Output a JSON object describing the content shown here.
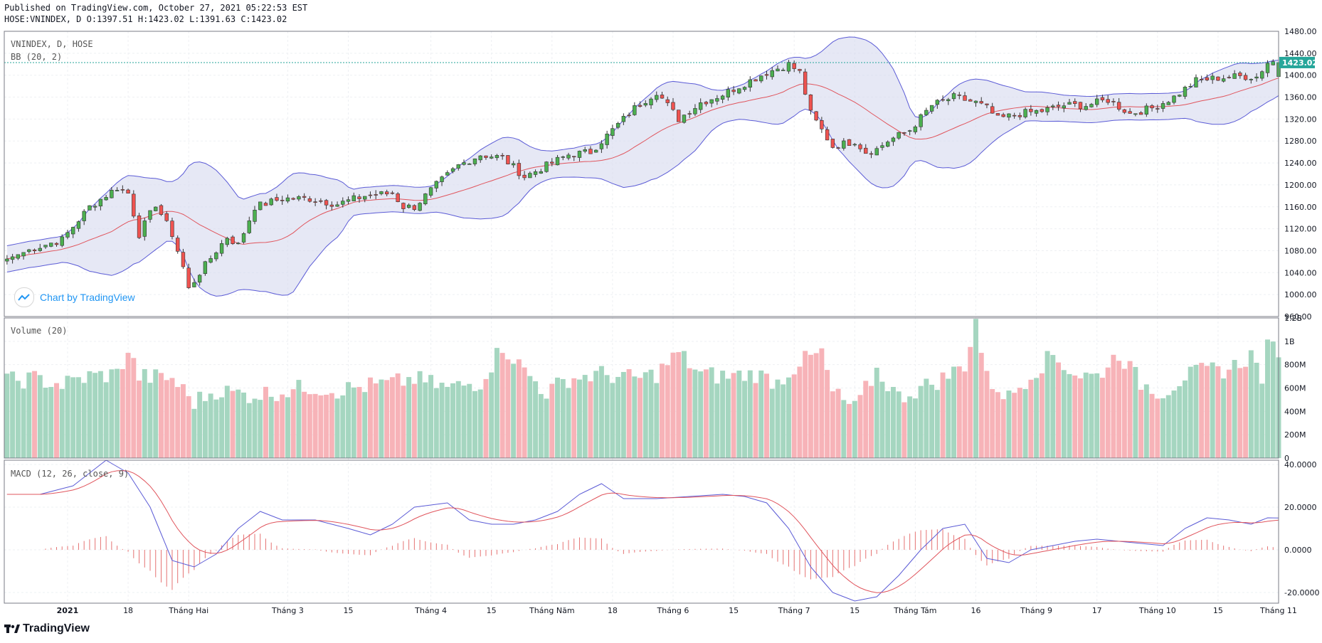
{
  "header": {
    "published": "Published on TradingView.com, October 27, 2021 05:22:53 EST",
    "ohlc": "HOSE:VNINDEX, D O:1397.51 H:1423.02 L:1391.63 C:1423.02"
  },
  "legend": {
    "symbol": "VNINDEX, D, HOSE",
    "bb": "BB (20, 2)",
    "volume": "Volume (20)",
    "macd": "MACD (12, 26, close, 9)"
  },
  "watermark": "Chart by TradingView",
  "footer_brand": "TradingView",
  "last_price_label": "1423.02",
  "colors": {
    "up": "#26a69a",
    "down": "#ef5350",
    "up_fill": "#4caf50",
    "vol_up": "#a5d6c0",
    "vol_down": "#f7b3b8",
    "bb_band": "#5b5bd6",
    "bb_fill": "#d6d8ee",
    "basis": "#e0545c",
    "macd_line": "#5b5bd6",
    "signal_line": "#e0545c",
    "hist": "#e57373",
    "last_price_bg": "#26a69a"
  },
  "chart_data": {
    "type": "candlestick",
    "price_axis": {
      "ylim": [
        960,
        1480
      ],
      "ticks": [
        "1480.00",
        "1440.00",
        "1400.00",
        "1360.00",
        "1320.00",
        "1280.00",
        "1240.00",
        "1200.00",
        "1160.00",
        "1120.00",
        "1080.00",
        "1040.00",
        "1000.00",
        "960.00"
      ],
      "tick_values": [
        1480,
        1440,
        1400,
        1360,
        1320,
        1280,
        1240,
        1200,
        1160,
        1120,
        1080,
        1040,
        1000,
        960
      ]
    },
    "volume_axis": {
      "ylim": [
        0,
        1200
      ],
      "ticks": [
        "1.2B",
        "1B",
        "800M",
        "600M",
        "400M",
        "200M",
        "0"
      ],
      "tick_values": [
        1200,
        1000,
        800,
        600,
        400,
        200,
        0
      ]
    },
    "macd_axis": {
      "ylim": [
        -25,
        42
      ],
      "ticks": [
        "40.0000",
        "20.0000",
        "0.0000",
        "-20.0000"
      ],
      "tick_values": [
        40,
        20,
        0,
        -20
      ]
    },
    "x_labels": [
      {
        "label": "2021",
        "i": 11
      },
      {
        "label": "18",
        "i": 22
      },
      {
        "label": "Tháng Hai",
        "i": 33
      },
      {
        "label": "Tháng 3",
        "i": 51
      },
      {
        "label": "15",
        "i": 62
      },
      {
        "label": "Tháng 4",
        "i": 77
      },
      {
        "label": "15",
        "i": 88
      },
      {
        "label": "Tháng Năm",
        "i": 99
      },
      {
        "label": "18",
        "i": 110
      },
      {
        "label": "Tháng 6",
        "i": 121
      },
      {
        "label": "15",
        "i": 132
      },
      {
        "label": "Tháng 7",
        "i": 143
      },
      {
        "label": "15",
        "i": 154
      },
      {
        "label": "Tháng Tám",
        "i": 165
      },
      {
        "label": "16",
        "i": 176
      },
      {
        "label": "Tháng 9",
        "i": 187
      },
      {
        "label": "17",
        "i": 198
      },
      {
        "label": "Tháng 10",
        "i": 209
      },
      {
        "label": "15",
        "i": 220
      },
      {
        "label": "Tháng 11",
        "i": 231
      }
    ],
    "bars_count": 232,
    "close_anchors": [
      [
        0,
        1065
      ],
      [
        5,
        1085
      ],
      [
        10,
        1100
      ],
      [
        15,
        1160
      ],
      [
        20,
        1195
      ],
      [
        22,
        1185
      ],
      [
        24,
        1110
      ],
      [
        27,
        1165
      ],
      [
        30,
        1110
      ],
      [
        32,
        1050
      ],
      [
        33,
        1010
      ],
      [
        35,
        1040
      ],
      [
        38,
        1080
      ],
      [
        40,
        1105
      ],
      [
        42,
        1090
      ],
      [
        45,
        1160
      ],
      [
        50,
        1175
      ],
      [
        55,
        1175
      ],
      [
        60,
        1165
      ],
      [
        65,
        1180
      ],
      [
        70,
        1185
      ],
      [
        72,
        1160
      ],
      [
        74,
        1160
      ],
      [
        78,
        1200
      ],
      [
        82,
        1235
      ],
      [
        86,
        1255
      ],
      [
        90,
        1250
      ],
      [
        94,
        1215
      ],
      [
        98,
        1235
      ],
      [
        102,
        1255
      ],
      [
        106,
        1260
      ],
      [
        110,
        1300
      ],
      [
        114,
        1340
      ],
      [
        118,
        1370
      ],
      [
        122,
        1320
      ],
      [
        126,
        1350
      ],
      [
        130,
        1365
      ],
      [
        134,
        1385
      ],
      [
        138,
        1405
      ],
      [
        142,
        1420
      ],
      [
        144,
        1405
      ],
      [
        146,
        1330
      ],
      [
        150,
        1270
      ],
      [
        154,
        1280
      ],
      [
        156,
        1260
      ],
      [
        158,
        1265
      ],
      [
        160,
        1280
      ],
      [
        164,
        1300
      ],
      [
        168,
        1345
      ],
      [
        172,
        1360
      ],
      [
        176,
        1350
      ],
      [
        178,
        1340
      ],
      [
        180,
        1320
      ],
      [
        184,
        1330
      ],
      [
        188,
        1335
      ],
      [
        192,
        1345
      ],
      [
        196,
        1345
      ],
      [
        200,
        1355
      ],
      [
        204,
        1330
      ],
      [
        208,
        1340
      ],
      [
        212,
        1360
      ],
      [
        216,
        1390
      ],
      [
        220,
        1395
      ],
      [
        224,
        1398
      ],
      [
        227,
        1397
      ],
      [
        229,
        1423
      ]
    ],
    "last_close": 1423.02,
    "volume_anchors": [
      [
        0,
        660
      ],
      [
        5,
        680
      ],
      [
        10,
        630
      ],
      [
        15,
        700
      ],
      [
        20,
        720
      ],
      [
        22,
        920
      ],
      [
        24,
        700
      ],
      [
        30,
        680
      ],
      [
        34,
        480
      ],
      [
        38,
        580
      ],
      [
        44,
        540
      ],
      [
        50,
        570
      ],
      [
        55,
        610
      ],
      [
        60,
        580
      ],
      [
        66,
        620
      ],
      [
        70,
        640
      ],
      [
        74,
        680
      ],
      [
        80,
        600
      ],
      [
        86,
        650
      ],
      [
        90,
        960
      ],
      [
        94,
        750
      ],
      [
        98,
        560
      ],
      [
        102,
        680
      ],
      [
        108,
        720
      ],
      [
        114,
        680
      ],
      [
        118,
        720
      ],
      [
        122,
        900
      ],
      [
        126,
        720
      ],
      [
        130,
        700
      ],
      [
        136,
        720
      ],
      [
        140,
        650
      ],
      [
        144,
        820
      ],
      [
        148,
        900
      ],
      [
        150,
        560
      ],
      [
        154,
        420
      ],
      [
        158,
        750
      ],
      [
        162,
        520
      ],
      [
        166,
        600
      ],
      [
        170,
        680
      ],
      [
        174,
        800
      ],
      [
        176,
        1180
      ],
      [
        178,
        680
      ],
      [
        182,
        520
      ],
      [
        186,
        720
      ],
      [
        190,
        880
      ],
      [
        194,
        720
      ],
      [
        198,
        700
      ],
      [
        202,
        900
      ],
      [
        206,
        640
      ],
      [
        210,
        560
      ],
      [
        214,
        700
      ],
      [
        218,
        750
      ],
      [
        222,
        760
      ],
      [
        226,
        880
      ],
      [
        228,
        700
      ],
      [
        229,
        940
      ]
    ],
    "macd_anchors": [
      [
        0,
        26
      ],
      [
        6,
        26
      ],
      [
        12,
        30
      ],
      [
        18,
        42
      ],
      [
        22,
        36
      ],
      [
        26,
        20
      ],
      [
        30,
        -5
      ],
      [
        34,
        -8
      ],
      [
        38,
        -2
      ],
      [
        42,
        10
      ],
      [
        46,
        18
      ],
      [
        50,
        14
      ],
      [
        56,
        14
      ],
      [
        62,
        10
      ],
      [
        66,
        7
      ],
      [
        70,
        12
      ],
      [
        74,
        20
      ],
      [
        80,
        22
      ],
      [
        84,
        14
      ],
      [
        88,
        12
      ],
      [
        92,
        12
      ],
      [
        96,
        14
      ],
      [
        100,
        18
      ],
      [
        104,
        26
      ],
      [
        108,
        31
      ],
      [
        112,
        24
      ],
      [
        118,
        24
      ],
      [
        124,
        25
      ],
      [
        130,
        26
      ],
      [
        134,
        25
      ],
      [
        138,
        22
      ],
      [
        142,
        10
      ],
      [
        146,
        -8
      ],
      [
        150,
        -20
      ],
      [
        154,
        -24
      ],
      [
        158,
        -22
      ],
      [
        162,
        -12
      ],
      [
        166,
        0
      ],
      [
        170,
        10
      ],
      [
        174,
        12
      ],
      [
        178,
        -4
      ],
      [
        182,
        -6
      ],
      [
        186,
        0
      ],
      [
        190,
        2
      ],
      [
        194,
        4
      ],
      [
        198,
        5
      ],
      [
        202,
        4
      ],
      [
        206,
        3
      ],
      [
        210,
        2
      ],
      [
        214,
        10
      ],
      [
        218,
        15
      ],
      [
        222,
        14
      ],
      [
        226,
        12
      ],
      [
        229,
        15
      ]
    ]
  }
}
